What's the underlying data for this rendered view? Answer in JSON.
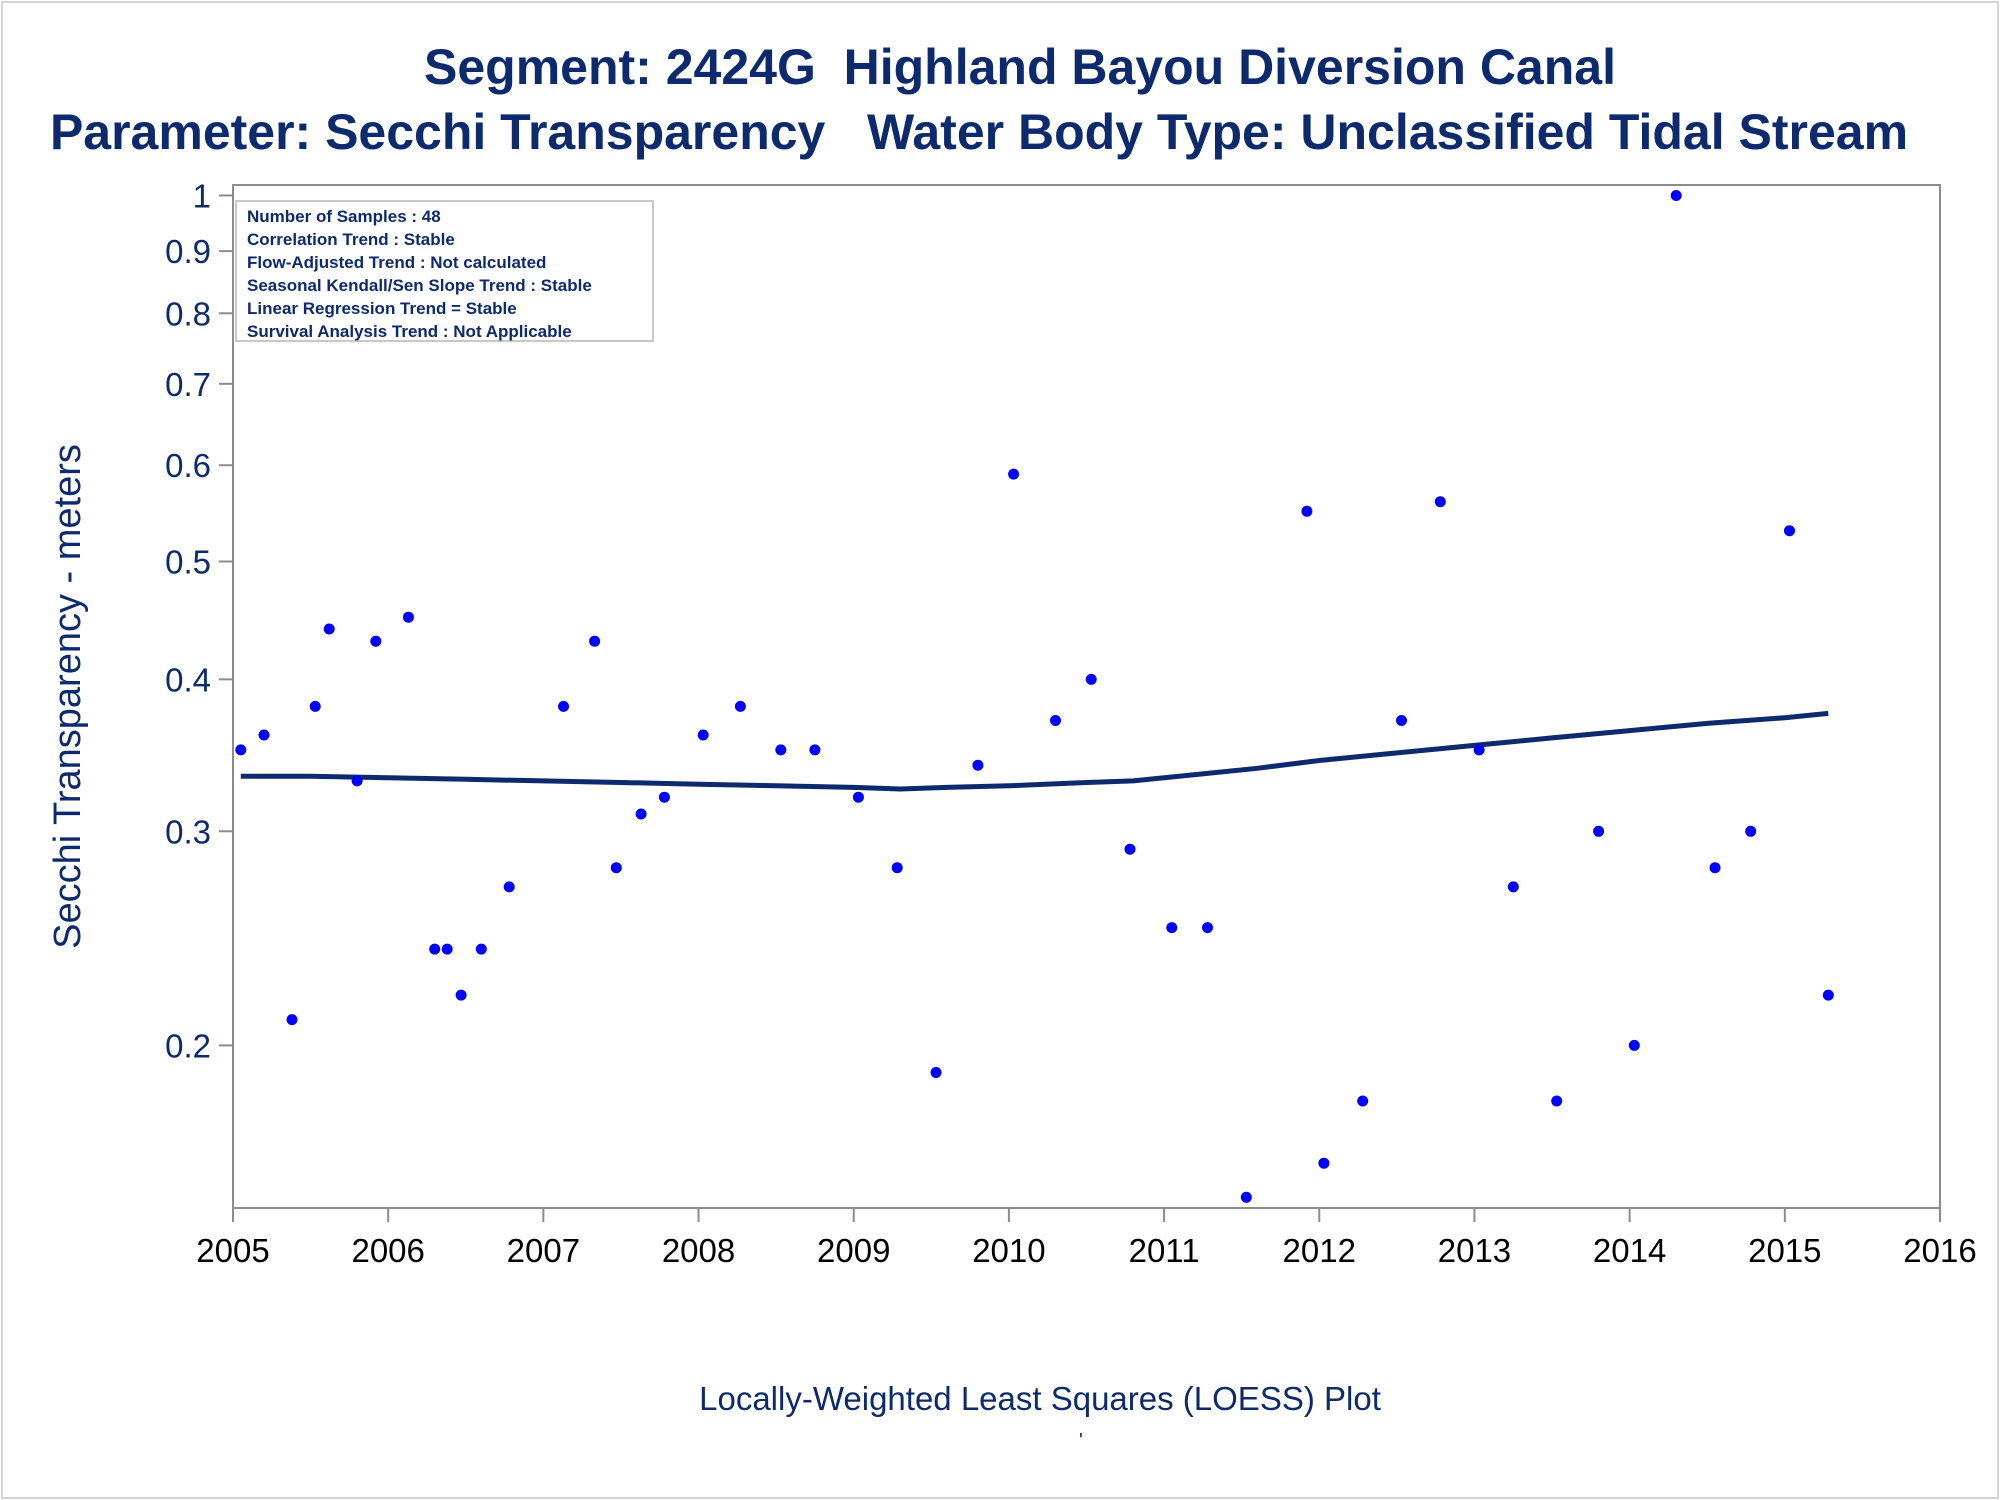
{
  "title": "Segment: 2424G  Highland Bayou Diversion Canal",
  "subtitle": "Parameter: Secchi Transparency   Water Body Type: Unclassified Tidal Stream",
  "footnote": "Locally-Weighted Least Squares (LOESS) Plot",
  "footnote_mark": "'",
  "colors": {
    "text": "#0d2a6e",
    "points": "#0000ff",
    "line": "#0d2a6e",
    "axis": "#8c8c8c"
  },
  "chart_data": {
    "type": "scatter",
    "title": "Segment: 2424G  Highland Bayou Diversion Canal",
    "subtitle": "Parameter: Secchi Transparency   Water Body Type: Unclassified Tidal Stream",
    "xlabel": "",
    "ylabel": "Secchi Transparency - meters",
    "yscale": "log",
    "xlim": [
      2005,
      2016
    ],
    "ylim": [
      0.147,
      1.02
    ],
    "xticks": [
      "2005",
      "2006",
      "2007",
      "2008",
      "2009",
      "2010",
      "2011",
      "2012",
      "2013",
      "2014",
      "2015",
      "2016"
    ],
    "yticks": [
      0.2,
      0.3,
      0.4,
      0.5,
      0.6,
      0.7,
      0.8,
      0.9,
      1
    ],
    "ytick_labels": [
      "0.2",
      "0.3",
      "0.4",
      "0.5",
      "0.6",
      "0.7",
      "0.8",
      "0.9",
      "1"
    ],
    "grid": false,
    "legend_position": "top-left",
    "annotation_lines": [
      "Number of Samples : 48",
      "Correlation Trend : Stable",
      "Flow-Adjusted Trend : Not calculated",
      "Seasonal Kendall/Sen Slope Trend : Stable",
      "Linear Regression Trend = Stable",
      "Survival Analysis Trend : Not Applicable"
    ],
    "points": [
      [
        2005.05,
        0.35
      ],
      [
        2005.2,
        0.36
      ],
      [
        2005.38,
        0.21
      ],
      [
        2005.53,
        0.38
      ],
      [
        2005.62,
        0.44
      ],
      [
        2005.8,
        0.33
      ],
      [
        2005.92,
        0.43
      ],
      [
        2006.13,
        0.45
      ],
      [
        2006.3,
        0.24
      ],
      [
        2006.38,
        0.24
      ],
      [
        2006.47,
        0.22
      ],
      [
        2006.6,
        0.24
      ],
      [
        2006.78,
        0.27
      ],
      [
        2007.13,
        0.38
      ],
      [
        2007.33,
        0.43
      ],
      [
        2007.47,
        0.28
      ],
      [
        2007.63,
        0.31
      ],
      [
        2007.78,
        0.32
      ],
      [
        2008.03,
        0.36
      ],
      [
        2008.27,
        0.38
      ],
      [
        2008.53,
        0.35
      ],
      [
        2008.75,
        0.35
      ],
      [
        2009.03,
        0.32
      ],
      [
        2009.28,
        0.28
      ],
      [
        2009.53,
        0.19
      ],
      [
        2009.8,
        0.34
      ],
      [
        2010.03,
        0.59
      ],
      [
        2010.3,
        0.37
      ],
      [
        2010.53,
        0.4
      ],
      [
        2010.78,
        0.29
      ],
      [
        2011.05,
        0.25
      ],
      [
        2011.28,
        0.25
      ],
      [
        2011.53,
        0.15
      ],
      [
        2011.92,
        0.55
      ],
      [
        2012.03,
        0.16
      ],
      [
        2012.28,
        0.18
      ],
      [
        2012.53,
        0.37
      ],
      [
        2012.78,
        0.56
      ],
      [
        2013.03,
        0.35
      ],
      [
        2013.25,
        0.27
      ],
      [
        2013.53,
        0.18
      ],
      [
        2013.8,
        0.3
      ],
      [
        2014.03,
        0.2
      ],
      [
        2014.3,
        1.0
      ],
      [
        2014.55,
        0.28
      ],
      [
        2014.78,
        0.3
      ],
      [
        2015.03,
        0.53
      ],
      [
        2015.28,
        0.22
      ]
    ],
    "loess": [
      [
        2005.05,
        0.333
      ],
      [
        2005.5,
        0.333
      ],
      [
        2006.0,
        0.332
      ],
      [
        2006.5,
        0.331
      ],
      [
        2007.0,
        0.33
      ],
      [
        2007.5,
        0.329
      ],
      [
        2008.0,
        0.328
      ],
      [
        2008.5,
        0.327
      ],
      [
        2009.0,
        0.326
      ],
      [
        2009.3,
        0.325
      ],
      [
        2009.6,
        0.326
      ],
      [
        2010.0,
        0.327
      ],
      [
        2010.5,
        0.329
      ],
      [
        2010.8,
        0.33
      ],
      [
        2011.2,
        0.334
      ],
      [
        2011.6,
        0.338
      ],
      [
        2012.0,
        0.343
      ],
      [
        2012.5,
        0.348
      ],
      [
        2013.0,
        0.353
      ],
      [
        2013.5,
        0.358
      ],
      [
        2014.0,
        0.363
      ],
      [
        2014.5,
        0.368
      ],
      [
        2015.0,
        0.372
      ],
      [
        2015.28,
        0.375
      ]
    ]
  }
}
